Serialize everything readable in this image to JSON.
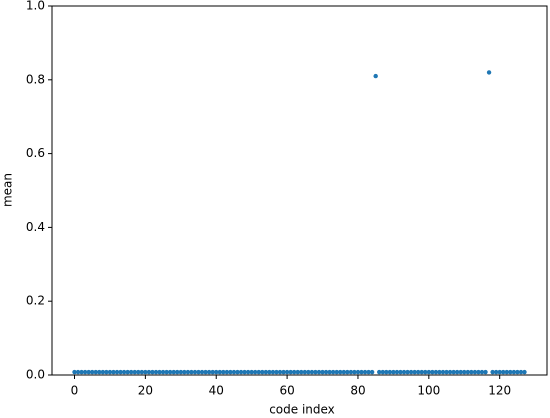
{
  "chart_data": {
    "type": "scatter",
    "xlabel": "code index",
    "ylabel": "mean",
    "x": [
      0,
      1,
      2,
      3,
      4,
      5,
      6,
      7,
      8,
      9,
      10,
      11,
      12,
      13,
      14,
      15,
      16,
      17,
      18,
      19,
      20,
      21,
      22,
      23,
      24,
      25,
      26,
      27,
      28,
      29,
      30,
      31,
      32,
      33,
      34,
      35,
      36,
      37,
      38,
      39,
      40,
      41,
      42,
      43,
      44,
      45,
      46,
      47,
      48,
      49,
      50,
      51,
      52,
      53,
      54,
      55,
      56,
      57,
      58,
      59,
      60,
      61,
      62,
      63,
      64,
      65,
      66,
      67,
      68,
      69,
      70,
      71,
      72,
      73,
      74,
      75,
      76,
      77,
      78,
      79,
      80,
      81,
      82,
      83,
      84,
      85,
      86,
      87,
      88,
      89,
      90,
      91,
      92,
      93,
      94,
      95,
      96,
      97,
      98,
      99,
      100,
      101,
      102,
      103,
      104,
      105,
      106,
      107,
      108,
      109,
      110,
      111,
      112,
      113,
      114,
      115,
      116,
      117,
      118,
      119,
      120,
      121,
      122,
      123,
      124,
      125,
      126,
      127
    ],
    "values": [
      0.008,
      0.008,
      0.008,
      0.008,
      0.008,
      0.008,
      0.008,
      0.008,
      0.008,
      0.008,
      0.008,
      0.008,
      0.008,
      0.008,
      0.008,
      0.008,
      0.008,
      0.008,
      0.008,
      0.008,
      0.008,
      0.008,
      0.008,
      0.008,
      0.008,
      0.008,
      0.008,
      0.008,
      0.008,
      0.008,
      0.008,
      0.008,
      0.008,
      0.008,
      0.008,
      0.008,
      0.008,
      0.008,
      0.008,
      0.008,
      0.008,
      0.008,
      0.008,
      0.008,
      0.008,
      0.008,
      0.008,
      0.008,
      0.008,
      0.008,
      0.008,
      0.008,
      0.008,
      0.008,
      0.008,
      0.008,
      0.008,
      0.008,
      0.008,
      0.008,
      0.008,
      0.008,
      0.008,
      0.008,
      0.008,
      0.008,
      0.008,
      0.008,
      0.008,
      0.008,
      0.008,
      0.008,
      0.008,
      0.008,
      0.008,
      0.008,
      0.008,
      0.008,
      0.008,
      0.008,
      0.008,
      0.008,
      0.008,
      0.008,
      0.008,
      0.81,
      0.008,
      0.008,
      0.008,
      0.008,
      0.008,
      0.008,
      0.008,
      0.008,
      0.008,
      0.008,
      0.008,
      0.008,
      0.008,
      0.008,
      0.008,
      0.008,
      0.008,
      0.008,
      0.008,
      0.008,
      0.008,
      0.008,
      0.008,
      0.008,
      0.008,
      0.008,
      0.008,
      0.008,
      0.008,
      0.008,
      0.008,
      0.82,
      0.008,
      0.008,
      0.008,
      0.008,
      0.008,
      0.008,
      0.008,
      0.008,
      0.008,
      0.008
    ],
    "color": "#1f77b4",
    "xlim": [
      -6.35,
      133.35
    ],
    "xticks": [
      0,
      20,
      40,
      60,
      80,
      100,
      120
    ],
    "ylim": [
      0,
      1
    ],
    "yticks": [
      {
        "value": 0,
        "label": "0.0"
      },
      0.2,
      0.4,
      0.6,
      0.8,
      {
        "value": 1,
        "label": "1.0"
      }
    ],
    "grid": false
  }
}
